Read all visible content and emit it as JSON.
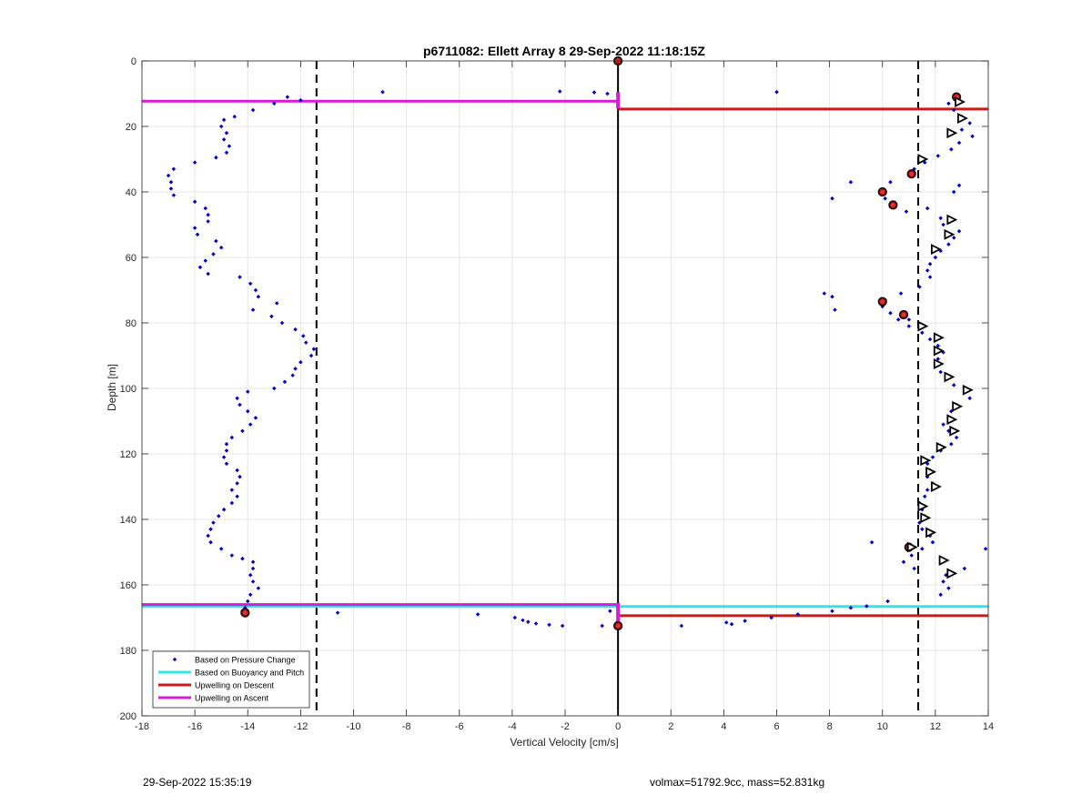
{
  "chart_data": {
    "type": "scatter",
    "title": "p6711082: Ellett Array 8 29-Sep-2022 11:18:15Z",
    "xlabel": "Vertical Velocity [cm/s]",
    "ylabel": "Depth [m]",
    "xlim": [
      -18,
      14
    ],
    "ylim": [
      0,
      200
    ],
    "y_reversed": true,
    "x_ticks": [
      -18,
      -16,
      -14,
      -12,
      -10,
      -8,
      -6,
      -4,
      -2,
      0,
      2,
      4,
      6,
      8,
      10,
      12,
      14
    ],
    "y_ticks": [
      0,
      20,
      40,
      60,
      80,
      100,
      120,
      140,
      160,
      180,
      200
    ],
    "grid": true,
    "legend_position": "bottom-left",
    "legend": [
      {
        "label": "Based on Pressure Change",
        "color": "#0000CC",
        "style": "marker"
      },
      {
        "label": "Based on Buoyancy and Pitch",
        "color": "#33E6E6",
        "style": "line"
      },
      {
        "label": "Upwelling on Descent",
        "color": "#CC1A1A",
        "style": "line"
      },
      {
        "label": "Upwelling on Ascent",
        "color": "#D91AD9",
        "style": "line"
      }
    ],
    "threshold_lines": [
      {
        "name": "dashed-left",
        "x": -11.4,
        "color": "#000000",
        "dashed": true
      },
      {
        "name": "dashed-right",
        "x": 11.35,
        "color": "#000000",
        "dashed": true
      },
      {
        "name": "zero",
        "x": 0,
        "color": "#000000",
        "dashed": false
      }
    ],
    "segments": [
      {
        "series": "Upwelling on Ascent",
        "x": [
          -18,
          0
        ],
        "y": 12.3,
        "color": "#D91AD9"
      },
      {
        "series": "Upwelling on Descent",
        "x": [
          0,
          14
        ],
        "y": 14.7,
        "color": "#CC1A1A"
      },
      {
        "series": "Based on Buoyancy and Pitch",
        "x": [
          -18,
          0
        ],
        "y": 166.6,
        "color": "#33E6E6"
      },
      {
        "series": "Upwelling on Ascent",
        "x": [
          -18,
          0
        ],
        "y": 166.0,
        "color": "#D91AD9"
      },
      {
        "series": "Based on Buoyancy and Pitch",
        "x": [
          0,
          14
        ],
        "y": 166.6,
        "color": "#33E6E6"
      },
      {
        "series": "Upwelling on Descent",
        "x": [
          0,
          14
        ],
        "y": 169.4,
        "color": "#CC1A1A"
      },
      {
        "series": "Upwelling on Ascent",
        "x": [
          0,
          0
        ],
        "y_range": [
          9.5,
          14.5
        ],
        "color": "#D91AD9"
      },
      {
        "series": "Upwelling on Ascent",
        "x": [
          0,
          0
        ],
        "y_range": [
          165.5,
          172
        ],
        "color": "#D91AD9"
      }
    ],
    "series": [
      {
        "name": "Based on Pressure Change",
        "role": "ascent",
        "color": "#0000CC",
        "points": [
          [
            -12.5,
            11
          ],
          [
            -13.0,
            13
          ],
          [
            -13.8,
            15
          ],
          [
            -14.5,
            17
          ],
          [
            -14.9,
            18
          ],
          [
            -15.0,
            20
          ],
          [
            -14.8,
            22
          ],
          [
            -14.9,
            24
          ],
          [
            -14.7,
            26
          ],
          [
            -14.8,
            28
          ],
          [
            -15.2,
            29.5
          ],
          [
            -16.0,
            31
          ],
          [
            -16.8,
            33
          ],
          [
            -17.0,
            35
          ],
          [
            -16.9,
            37
          ],
          [
            -16.9,
            39
          ],
          [
            -16.8,
            41
          ],
          [
            -16.0,
            43
          ],
          [
            -15.6,
            45
          ],
          [
            -15.5,
            47
          ],
          [
            -15.5,
            49
          ],
          [
            -16.0,
            51
          ],
          [
            -15.9,
            53
          ],
          [
            -15.2,
            55
          ],
          [
            -15.0,
            57
          ],
          [
            -15.3,
            59
          ],
          [
            -15.6,
            61
          ],
          [
            -15.8,
            63
          ],
          [
            -15.5,
            65
          ],
          [
            -14.3,
            66
          ],
          [
            -13.9,
            68
          ],
          [
            -13.7,
            70
          ],
          [
            -13.6,
            72
          ],
          [
            -12.9,
            74
          ],
          [
            -13.8,
            76
          ],
          [
            -13.1,
            78
          ],
          [
            -12.7,
            80
          ],
          [
            -12.2,
            82
          ],
          [
            -11.9,
            84
          ],
          [
            -11.8,
            86
          ],
          [
            -11.5,
            88
          ],
          [
            -11.6,
            90
          ],
          [
            -12.0,
            92
          ],
          [
            -12.2,
            94
          ],
          [
            -12.3,
            96
          ],
          [
            -12.6,
            98
          ],
          [
            -13.0,
            100
          ],
          [
            -14.0,
            101
          ],
          [
            -14.4,
            103
          ],
          [
            -14.3,
            105
          ],
          [
            -14.0,
            107
          ],
          [
            -13.7,
            109
          ],
          [
            -13.9,
            111
          ],
          [
            -14.2,
            113
          ],
          [
            -14.6,
            115
          ],
          [
            -14.8,
            117
          ],
          [
            -14.8,
            119
          ],
          [
            -14.9,
            121
          ],
          [
            -14.8,
            123
          ],
          [
            -14.4,
            125
          ],
          [
            -14.3,
            127
          ],
          [
            -14.4,
            129
          ],
          [
            -14.6,
            131
          ],
          [
            -14.4,
            133
          ],
          [
            -14.6,
            135
          ],
          [
            -14.9,
            137
          ],
          [
            -15.1,
            139
          ],
          [
            -15.3,
            141
          ],
          [
            -15.4,
            143
          ],
          [
            -15.5,
            145
          ],
          [
            -15.4,
            147
          ],
          [
            -15.0,
            149
          ],
          [
            -14.6,
            151
          ],
          [
            -14.2,
            152
          ],
          [
            -13.8,
            153
          ],
          [
            -13.8,
            155
          ],
          [
            -13.9,
            157
          ],
          [
            -13.8,
            159
          ],
          [
            -13.6,
            161
          ],
          [
            -13.9,
            163
          ],
          [
            -14.0,
            165
          ],
          [
            -14.1,
            167
          ],
          [
            -14.2,
            168
          ],
          [
            -12.0,
            12
          ],
          [
            -8.9,
            9.5
          ],
          [
            -2.2,
            9.3
          ],
          [
            -0.9,
            9.6
          ],
          [
            -0.4,
            10
          ],
          [
            6.0,
            9.5
          ],
          [
            -10.6,
            168.5
          ],
          [
            -5.3,
            169
          ],
          [
            -3.9,
            170
          ],
          [
            -3.6,
            170.8
          ],
          [
            -3.4,
            171.3
          ],
          [
            -3.1,
            171.8
          ],
          [
            -2.6,
            172.2
          ],
          [
            -2.1,
            172.5
          ],
          [
            -0.6,
            172.5
          ],
          [
            -0.3,
            168
          ]
        ]
      },
      {
        "name": "Based on Pressure Change",
        "role": "descent",
        "color": "#0000CC",
        "points": [
          [
            12.5,
            13
          ],
          [
            12.7,
            15
          ],
          [
            13.0,
            17
          ],
          [
            13.3,
            19
          ],
          [
            13.0,
            21
          ],
          [
            13.4,
            23
          ],
          [
            12.9,
            25
          ],
          [
            12.6,
            27
          ],
          [
            12.1,
            29
          ],
          [
            11.6,
            31
          ],
          [
            11.2,
            33
          ],
          [
            11.0,
            35
          ],
          [
            10.3,
            37
          ],
          [
            10.0,
            40
          ],
          [
            10.1,
            42
          ],
          [
            10.5,
            44
          ],
          [
            10.9,
            46
          ],
          [
            11.7,
            45
          ],
          [
            12.2,
            48
          ],
          [
            12.3,
            50
          ],
          [
            12.9,
            52
          ],
          [
            12.7,
            54
          ],
          [
            12.5,
            56
          ],
          [
            12.2,
            58
          ],
          [
            12.0,
            60
          ],
          [
            11.8,
            62
          ],
          [
            11.7,
            64
          ],
          [
            11.8,
            66
          ],
          [
            11.4,
            69
          ],
          [
            10.7,
            71
          ],
          [
            10.1,
            73
          ],
          [
            10.0,
            75
          ],
          [
            10.3,
            77
          ],
          [
            10.6,
            79
          ],
          [
            11.0,
            81
          ],
          [
            11.5,
            83
          ],
          [
            11.8,
            85
          ],
          [
            12.1,
            87
          ],
          [
            12.3,
            89
          ],
          [
            12.1,
            91
          ],
          [
            12.0,
            93
          ],
          [
            12.2,
            95
          ],
          [
            12.4,
            97
          ],
          [
            12.7,
            99
          ],
          [
            13.1,
            101
          ],
          [
            13.3,
            103
          ],
          [
            12.8,
            105
          ],
          [
            12.6,
            107
          ],
          [
            12.5,
            109
          ],
          [
            12.3,
            111
          ],
          [
            12.5,
            113
          ],
          [
            12.8,
            115
          ],
          [
            12.6,
            117
          ],
          [
            12.2,
            119
          ],
          [
            11.9,
            121
          ],
          [
            11.7,
            123
          ],
          [
            11.8,
            125
          ],
          [
            11.7,
            127
          ],
          [
            11.9,
            129
          ],
          [
            11.7,
            131
          ],
          [
            11.6,
            133
          ],
          [
            11.4,
            135
          ],
          [
            11.5,
            137
          ],
          [
            11.6,
            139
          ],
          [
            11.4,
            141
          ],
          [
            11.5,
            143
          ],
          [
            11.8,
            145
          ],
          [
            11.9,
            147
          ],
          [
            11.5,
            149
          ],
          [
            11.1,
            151
          ],
          [
            10.8,
            153
          ],
          [
            11.2,
            155
          ],
          [
            12.4,
            157
          ],
          [
            12.3,
            159
          ],
          [
            12.5,
            161
          ],
          [
            12.2,
            163
          ],
          [
            8.8,
            37
          ],
          [
            8.1,
            42
          ],
          [
            7.8,
            71
          ],
          [
            8.1,
            72
          ],
          [
            8.2,
            76
          ],
          [
            11.0,
            79
          ],
          [
            9.6,
            147
          ],
          [
            12.9,
            38
          ],
          [
            12.7,
            40
          ],
          [
            13.9,
            149
          ],
          [
            13.1,
            155
          ],
          [
            5.8,
            170
          ],
          [
            4.1,
            171.5
          ],
          [
            2.4,
            172.5
          ],
          [
            4.3,
            172
          ],
          [
            4.8,
            171
          ],
          [
            6.8,
            169
          ],
          [
            8.1,
            168
          ],
          [
            8.8,
            167
          ],
          [
            9.4,
            166.5
          ],
          [
            10.2,
            165
          ]
        ]
      },
      {
        "name": "Upwelling markers (descent)",
        "marker": "filled-triangle",
        "color": "#CC1A1A",
        "points": [
          [
            0,
            0
          ],
          [
            12.8,
            11
          ],
          [
            11.1,
            34.5
          ],
          [
            10.0,
            40
          ],
          [
            10.4,
            44
          ],
          [
            10.0,
            73.5
          ],
          [
            10.8,
            77.5
          ],
          [
            11.0,
            148.5
          ],
          [
            -14.1,
            168.5
          ],
          [
            0,
            172.5
          ]
        ]
      },
      {
        "name": "Direction markers",
        "marker": "open-triangle",
        "color": "#000000",
        "points": [
          [
            12.9,
            12.5
          ],
          [
            13.0,
            17.5
          ],
          [
            12.6,
            22
          ],
          [
            11.5,
            30
          ],
          [
            12.6,
            48.5
          ],
          [
            12.5,
            53
          ],
          [
            12.0,
            57.5
          ],
          [
            11.5,
            81
          ],
          [
            12.1,
            84.5
          ],
          [
            12.1,
            88.5
          ],
          [
            12.1,
            92.5
          ],
          [
            12.5,
            96.5
          ],
          [
            13.2,
            100.5
          ],
          [
            12.8,
            105.5
          ],
          [
            12.6,
            109.5
          ],
          [
            12.7,
            113
          ],
          [
            12.2,
            118
          ],
          [
            11.6,
            122
          ],
          [
            11.8,
            125.5
          ],
          [
            12.0,
            130
          ],
          [
            11.5,
            136
          ],
          [
            11.6,
            139.5
          ],
          [
            11.8,
            144
          ],
          [
            12.3,
            152.5
          ],
          [
            12.6,
            156.5
          ],
          [
            11.1,
            148.5
          ]
        ]
      }
    ]
  },
  "footer": {
    "timestamp": "29-Sep-2022 15:35:19",
    "stats": "volmax=51792.9cc, mass=52.831kg"
  }
}
